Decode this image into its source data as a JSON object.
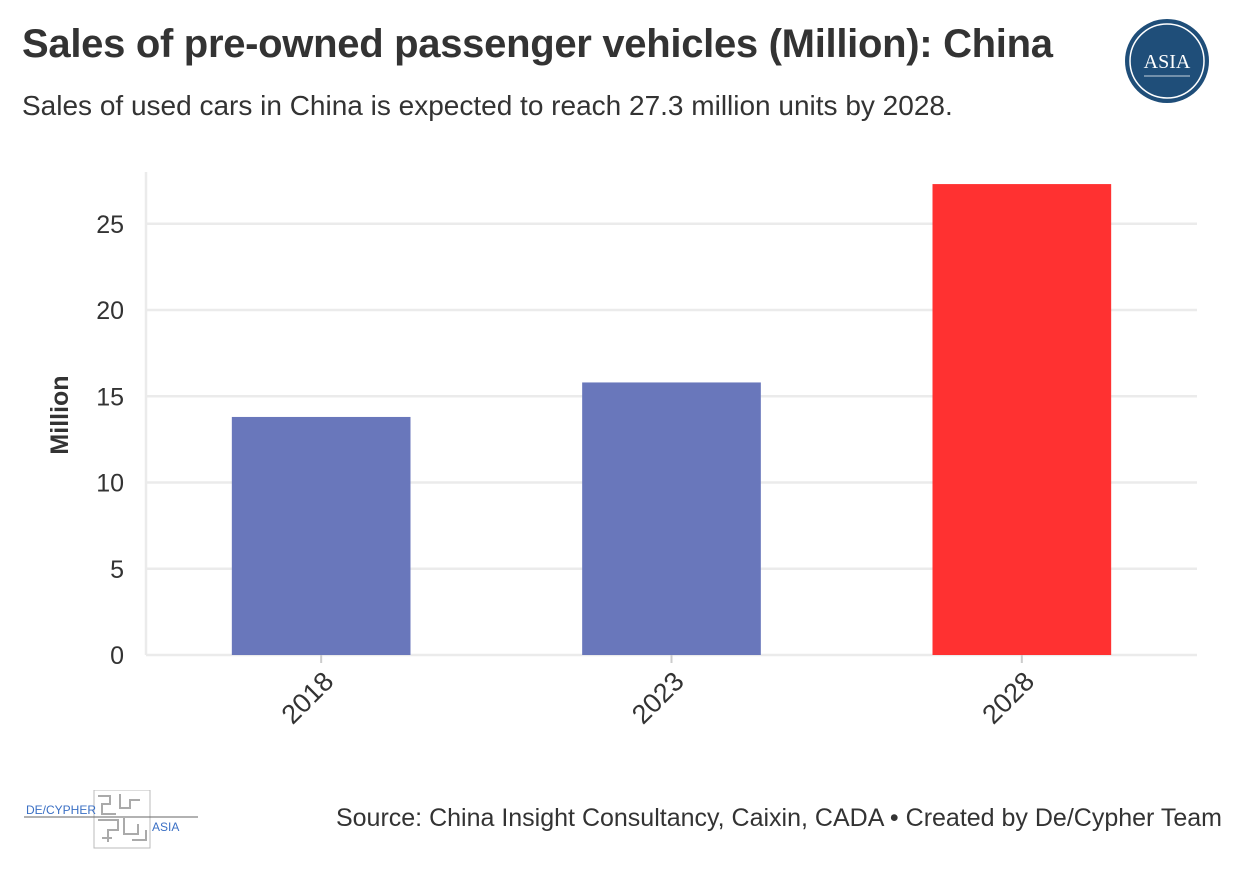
{
  "header": {
    "title": "Sales of pre-owned passenger vehicles (Million): China",
    "subtitle": "Sales of used cars in China is expected to reach 27.3 million units by 2028.",
    "badge_text": "ASIA"
  },
  "footer": {
    "source": "Source: China Insight Consultancy, Caixin, CADA • Created by De/Cypher Team",
    "brand_left": "DE/CYPHER",
    "brand_right": "ASIA"
  },
  "colors": {
    "bar_default": "#6977bb",
    "bar_highlight": "#ff3131",
    "grid": "#ebebeb",
    "axis_text": "#333333",
    "badge": "#1f4e79"
  },
  "chart_data": {
    "type": "bar",
    "title": "Sales of pre-owned passenger vehicles (Million): China",
    "xlabel": "",
    "ylabel": "Million",
    "categories": [
      "2018",
      "2023",
      "2028"
    ],
    "values": [
      13.8,
      15.8,
      27.3
    ],
    "highlight": [
      false,
      false,
      true
    ],
    "ylim": [
      0,
      28
    ],
    "yticks": [
      0,
      5,
      10,
      15,
      20,
      25
    ],
    "grid": true
  }
}
